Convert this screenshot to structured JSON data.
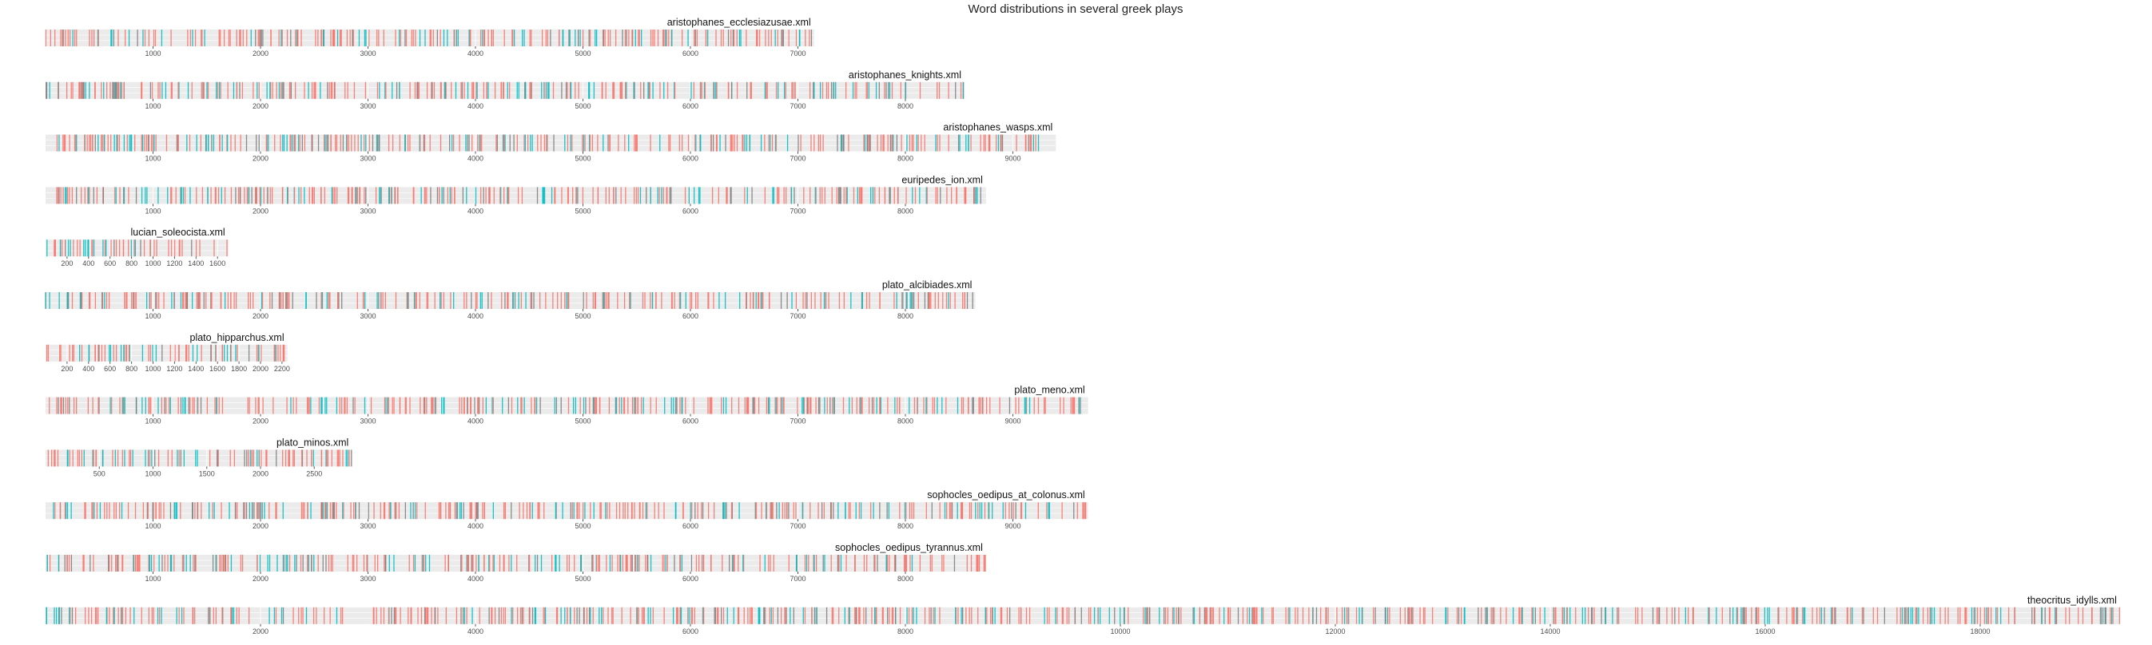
{
  "chart_data": {
    "type": "strip",
    "title": "Word distributions in several greek plays",
    "xlabel": "",
    "ylabel": "",
    "colors": {
      "series_a": "#F8766D",
      "series_b": "#00BFC4",
      "series_c": "#7F7F7F",
      "panel_bg": "#EBEBEB",
      "grid": "#FFFFFF"
    },
    "legend": "none",
    "panels": [
      {
        "name": "aristophanes_ecclesiazusae.xml",
        "xlim": [
          0,
          7150
        ],
        "ticks": [
          1000,
          2000,
          3000,
          4000,
          5000,
          6000,
          7000
        ],
        "seed": 11
      },
      {
        "name": "aristophanes_knights.xml",
        "xlim": [
          0,
          8550
        ],
        "ticks": [
          1000,
          2000,
          3000,
          4000,
          5000,
          6000,
          7000,
          8000
        ],
        "seed": 23
      },
      {
        "name": "aristophanes_wasps.xml",
        "xlim": [
          0,
          9400
        ],
        "ticks": [
          1000,
          2000,
          3000,
          4000,
          5000,
          6000,
          7000,
          8000,
          9000
        ],
        "seed": 37
      },
      {
        "name": "euripedes_ion.xml",
        "xlim": [
          0,
          8750
        ],
        "ticks": [
          1000,
          2000,
          3000,
          4000,
          5000,
          6000,
          7000,
          8000
        ],
        "seed": 41
      },
      {
        "name": "lucian_soleocista.xml",
        "xlim": [
          0,
          1700
        ],
        "ticks": [
          200,
          400,
          600,
          800,
          1000,
          1200,
          1400,
          1600
        ],
        "seed": 53
      },
      {
        "name": "plato_alcibiades.xml",
        "xlim": [
          0,
          8650
        ],
        "ticks": [
          1000,
          2000,
          3000,
          4000,
          5000,
          6000,
          7000,
          8000
        ],
        "seed": 67
      },
      {
        "name": "plato_hipparchus.xml",
        "xlim": [
          0,
          2250
        ],
        "ticks": [
          200,
          400,
          600,
          800,
          1000,
          1200,
          1400,
          1600,
          1800,
          2000,
          2200
        ],
        "seed": 71
      },
      {
        "name": "plato_meno.xml",
        "xlim": [
          0,
          9700
        ],
        "ticks": [
          1000,
          2000,
          3000,
          4000,
          5000,
          6000,
          7000,
          8000,
          9000
        ],
        "seed": 83
      },
      {
        "name": "plato_minos.xml",
        "xlim": [
          0,
          2850
        ],
        "ticks": [
          500,
          1000,
          1500,
          2000,
          2500
        ],
        "seed": 97
      },
      {
        "name": "sophocles_oedipus_at_colonus.xml",
        "xlim": [
          0,
          9700
        ],
        "ticks": [
          1000,
          2000,
          3000,
          4000,
          5000,
          6000,
          7000,
          8000,
          9000
        ],
        "seed": 101
      },
      {
        "name": "sophocles_oedipus_tyrannus.xml",
        "xlim": [
          0,
          8750
        ],
        "ticks": [
          1000,
          2000,
          3000,
          4000,
          5000,
          6000,
          7000,
          8000
        ],
        "seed": 113
      },
      {
        "name": "theocritus_idylls.xml",
        "xlim": [
          0,
          19300
        ],
        "ticks": [
          2000,
          4000,
          6000,
          8000,
          10000,
          12000,
          14000,
          16000,
          18000
        ],
        "seed": 127
      }
    ]
  }
}
